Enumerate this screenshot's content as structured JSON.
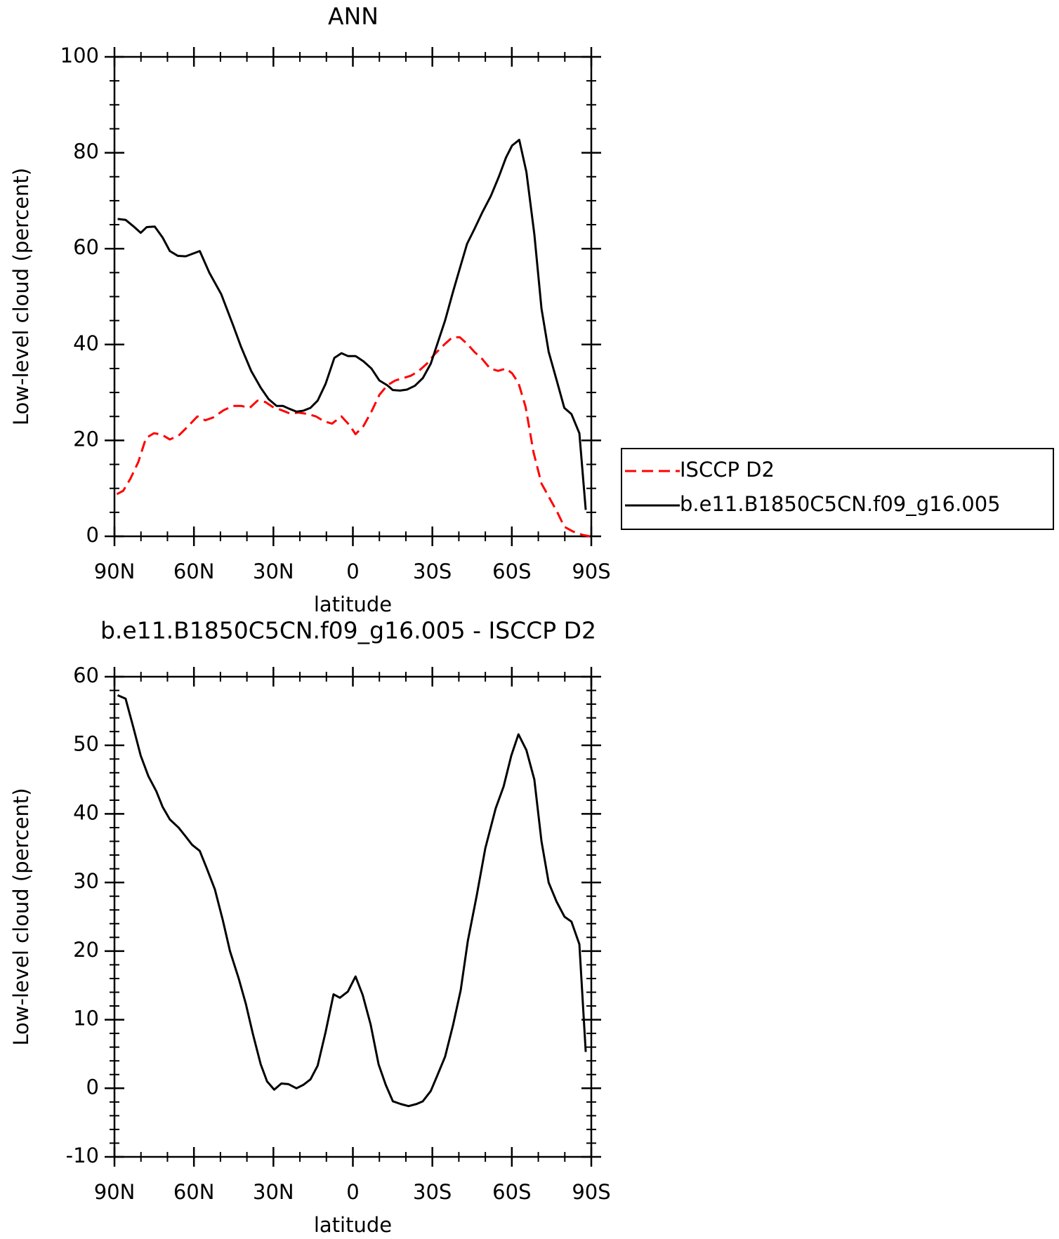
{
  "chart_data": [
    {
      "type": "line",
      "title": "ANN",
      "xlabel": "latitude",
      "ylabel": "Low-level cloud (percent)",
      "xlim": [
        90,
        -90
      ],
      "xticks": [
        {
          "value": 90,
          "label": "90N"
        },
        {
          "value": 60,
          "label": "60N"
        },
        {
          "value": 30,
          "label": "30N"
        },
        0,
        {
          "value": -30,
          "label": "30S"
        },
        {
          "value": -60,
          "label": "60S"
        },
        {
          "value": -90,
          "label": "90S"
        }
      ],
      "ylim": [
        0,
        100
      ],
      "yticks": [
        0,
        20,
        40,
        60,
        80,
        100
      ],
      "series": [
        {
          "name": "ISCCP D2",
          "color": "#ff0000",
          "dash": true,
          "x": [
            89.1,
            86.7,
            84.0,
            81.0,
            78.1,
            75.1,
            72.1,
            69.1,
            65.8,
            62.5,
            58.7,
            55.7,
            52.7,
            48.8,
            45.2,
            42.2,
            38.9,
            36.0,
            33.0,
            30.3,
            26.4,
            23.7,
            20.5,
            16.9,
            13.9,
            10.9,
            7.9,
            4.3,
            1.3,
            -1.0,
            -4.0,
            -7.0,
            -10.0,
            -13.0,
            -16.0,
            -19.0,
            -21.9,
            -24.9,
            -27.9,
            -30.9,
            -34.5,
            -37.5,
            -40.4,
            -43.4,
            -45.8,
            -48.8,
            -51.8,
            -54.8,
            -57.8,
            -60.1,
            -62.5,
            -65.2,
            -68.2,
            -71.2,
            -74.2,
            -77.2,
            -79.8,
            -83.1,
            -86.7,
            -89.4
          ],
          "values": [
            8.8,
            9.5,
            12,
            15.5,
            20.5,
            21.5,
            21.2,
            20.2,
            21,
            22.8,
            25,
            24.2,
            24.8,
            26.3,
            27.2,
            27.2,
            26.8,
            28.3,
            28,
            27,
            26.2,
            25.6,
            25.8,
            25.5,
            25,
            24,
            23.5,
            25,
            23.2,
            21.3,
            23,
            26,
            29.5,
            31.5,
            32.5,
            33,
            33.5,
            34.5,
            36,
            38,
            40,
            41.5,
            41.5,
            40,
            38.5,
            37,
            35,
            34.5,
            35,
            34,
            32,
            27,
            17.5,
            11,
            8,
            5,
            2,
            1,
            0.3,
            0
          ]
        },
        {
          "name": "b.e11.B1850C5CN.f09_g16.005",
          "color": "#000000",
          "dash": false,
          "x": [
            88.8,
            85.8,
            82.5,
            80.1,
            77.8,
            74.8,
            71.8,
            69.1,
            66.1,
            63.1,
            57.8,
            54.2,
            49.7,
            45.2,
            42.2,
            38.4,
            34.8,
            31.8,
            28.8,
            26.4,
            24.0,
            21.3,
            18.7,
            16.0,
            13.3,
            10.3,
            7.0,
            4.3,
            1.9,
            -1.0,
            -4.0,
            -7.0,
            -10.0,
            -13.0,
            -15.1,
            -17.8,
            -20.4,
            -23.4,
            -26.4,
            -29.4,
            -31.8,
            -34.8,
            -37.8,
            -40.7,
            -43.1,
            -45.8,
            -48.8,
            -52.1,
            -55.1,
            -57.8,
            -60.1,
            -62.8,
            -65.5,
            -68.5,
            -71.2,
            -73.9,
            -77.2,
            -79.8,
            -82.5,
            -85.5,
            -87.9
          ],
          "values": [
            66.2,
            66,
            64.5,
            63.3,
            64.5,
            64.6,
            62.3,
            59.5,
            58.5,
            58.4,
            59.5,
            55,
            50.5,
            44,
            39.5,
            34.5,
            31,
            28.6,
            27.2,
            27.2,
            26.6,
            26,
            26.2,
            26.8,
            28.3,
            31.8,
            37.2,
            38.2,
            37.6,
            37.6,
            36.5,
            35,
            32.5,
            31.5,
            30.5,
            30.4,
            30.6,
            31.4,
            33,
            36,
            40,
            45,
            51,
            56.5,
            61,
            64,
            67.5,
            71,
            75,
            79,
            81.5,
            82.7,
            76,
            63,
            47.5,
            38.5,
            32,
            26.8,
            25.5,
            21.5,
            5.5
          ]
        }
      ]
    },
    {
      "type": "line",
      "title": "b.e11.B1850C5CN.f09_g16.005 - ISCCP D2",
      "xlabel": "latitude",
      "ylabel": "Low-level cloud (percent)",
      "xlim": [
        90,
        -90
      ],
      "xticks": [
        {
          "value": 90,
          "label": "90N"
        },
        {
          "value": 60,
          "label": "60N"
        },
        {
          "value": 30,
          "label": "30N"
        },
        0,
        {
          "value": -30,
          "label": "30S"
        },
        {
          "value": -60,
          "label": "60S"
        },
        {
          "value": -90,
          "label": "90S"
        }
      ],
      "ylim": [
        -10,
        60
      ],
      "yticks": [
        -10,
        0,
        10,
        20,
        30,
        40,
        50,
        60
      ],
      "color": "#000000",
      "x": [
        88.8,
        85.8,
        82.8,
        80.1,
        77.2,
        74.2,
        71.8,
        69.1,
        65.8,
        63.1,
        60.7,
        57.8,
        55.1,
        52.1,
        49.1,
        46.4,
        43.1,
        40.4,
        37.8,
        34.8,
        32.4,
        29.7,
        27.0,
        24.3,
        21.3,
        18.7,
        16.0,
        13.3,
        10.3,
        7.3,
        4.9,
        1.9,
        -1.0,
        -3.7,
        -6.7,
        -9.7,
        -12.4,
        -15.1,
        -18.1,
        -21.0,
        -24.0,
        -26.4,
        -29.4,
        -31.8,
        -34.8,
        -37.8,
        -40.7,
        -43.4,
        -46.7,
        -50.0,
        -53.9,
        -56.9,
        -59.8,
        -62.5,
        -65.5,
        -68.5,
        -71.2,
        -73.9,
        -76.9,
        -79.9,
        -82.5,
        -85.5,
        -87.9
      ],
      "values": [
        57.3,
        56.8,
        52.5,
        48.5,
        45.5,
        43.3,
        41,
        39.2,
        38,
        36.7,
        35.5,
        34.6,
        32,
        29,
        24.5,
        20,
        16,
        12.3,
        8,
        3.5,
        1,
        -0.2,
        0.7,
        0.6,
        0,
        0.5,
        1.3,
        3.3,
        8.2,
        13.7,
        13.2,
        14.1,
        16.3,
        13.6,
        9.3,
        3.5,
        0.5,
        -1.9,
        -2.3,
        -2.6,
        -2.3,
        -1.9,
        -0.4,
        1.8,
        4.6,
        9.2,
        14.3,
        21.5,
        28,
        35,
        40.8,
        44,
        48.5,
        51.6,
        49.3,
        45,
        36,
        30,
        27.2,
        25,
        24.3,
        21,
        5.3
      ]
    }
  ]
}
